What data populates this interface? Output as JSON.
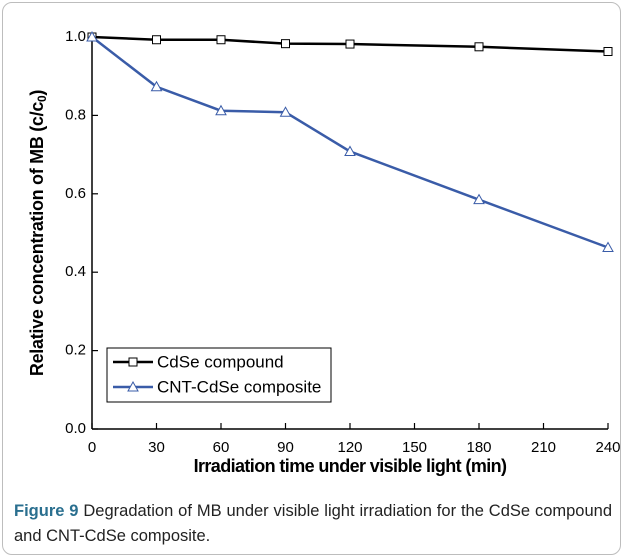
{
  "chart_data": {
    "type": "line",
    "xlabel": "Irradiation time under visible light (min)",
    "ylabel": [
      "Relative concentration of MB (c/c",
      "0",
      ")"
    ],
    "x": [
      0,
      30,
      60,
      90,
      120,
      180,
      240
    ],
    "series": [
      {
        "name": "CdSe compound",
        "color": "#000000",
        "marker": "square",
        "values": [
          1.0,
          0.993,
          0.993,
          0.983,
          0.982,
          0.975,
          0.963
        ]
      },
      {
        "name": "CNT-CdSe composite",
        "color": "#3a5ca8",
        "marker": "triangle",
        "values": [
          1.0,
          0.873,
          0.812,
          0.808,
          0.708,
          0.585,
          0.463
        ]
      }
    ],
    "xlim": [
      0,
      240
    ],
    "xticks": [
      0,
      30,
      60,
      90,
      120,
      150,
      180,
      210,
      240
    ],
    "ylim": [
      0,
      1.0
    ],
    "yticks": [
      {
        "value": 0,
        "label": "0.0"
      },
      0.2,
      0.4,
      0.6,
      0.8,
      {
        "value": 1.0,
        "label": "1.0"
      }
    ],
    "legend": "lower left",
    "caption": {
      "label": "Figure 9",
      "text": "Degradation of MB under visible light irradiation for the CdSe compound and CNT-CdSe composite."
    }
  }
}
